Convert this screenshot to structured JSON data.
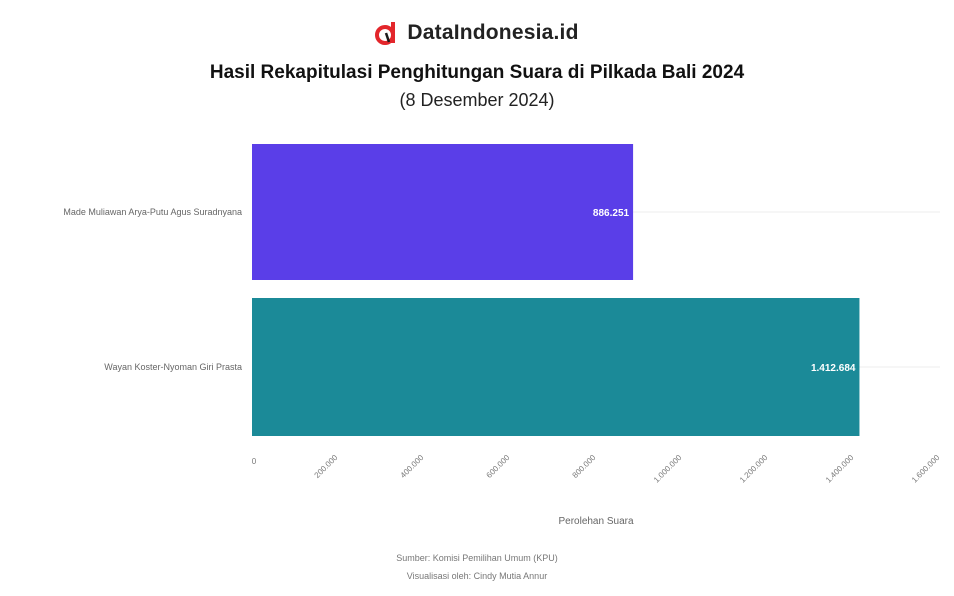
{
  "brand": {
    "name": "DataIndonesia.id",
    "logo_color": "#e3262b"
  },
  "header": {
    "title": "Hasil Rekapitulasi Penghitungan Suara di Pilkada Bali 2024",
    "subtitle": "(8 Desember 2024)"
  },
  "chart_data": {
    "type": "bar",
    "orientation": "horizontal",
    "categories": [
      "Made Muliawan Arya-Putu Agus Suradnyana",
      "Wayan Koster-Nyoman Giri Prasta"
    ],
    "values": [
      886251,
      1412684
    ],
    "value_labels": [
      "886.251",
      "1.412.684"
    ],
    "colors": [
      "#5a3ee8",
      "#1b8a98"
    ],
    "xlabel": "Perolehan Suara",
    "xlim": [
      0,
      1600000
    ],
    "xticks": [
      0,
      200000,
      400000,
      600000,
      800000,
      1000000,
      1200000,
      1400000,
      1600000
    ],
    "xtick_labels": [
      "0",
      "200.000",
      "400.000",
      "600.000",
      "800.000",
      "1.000.000",
      "1.200.000",
      "1.400.000",
      "1.600.000"
    ],
    "grid": true
  },
  "footer": {
    "source": "Sumber: Komisi Pemilihan Umum (KPU)",
    "visualized_by": "Visualisasi oleh: Cindy Mutia Annur"
  }
}
